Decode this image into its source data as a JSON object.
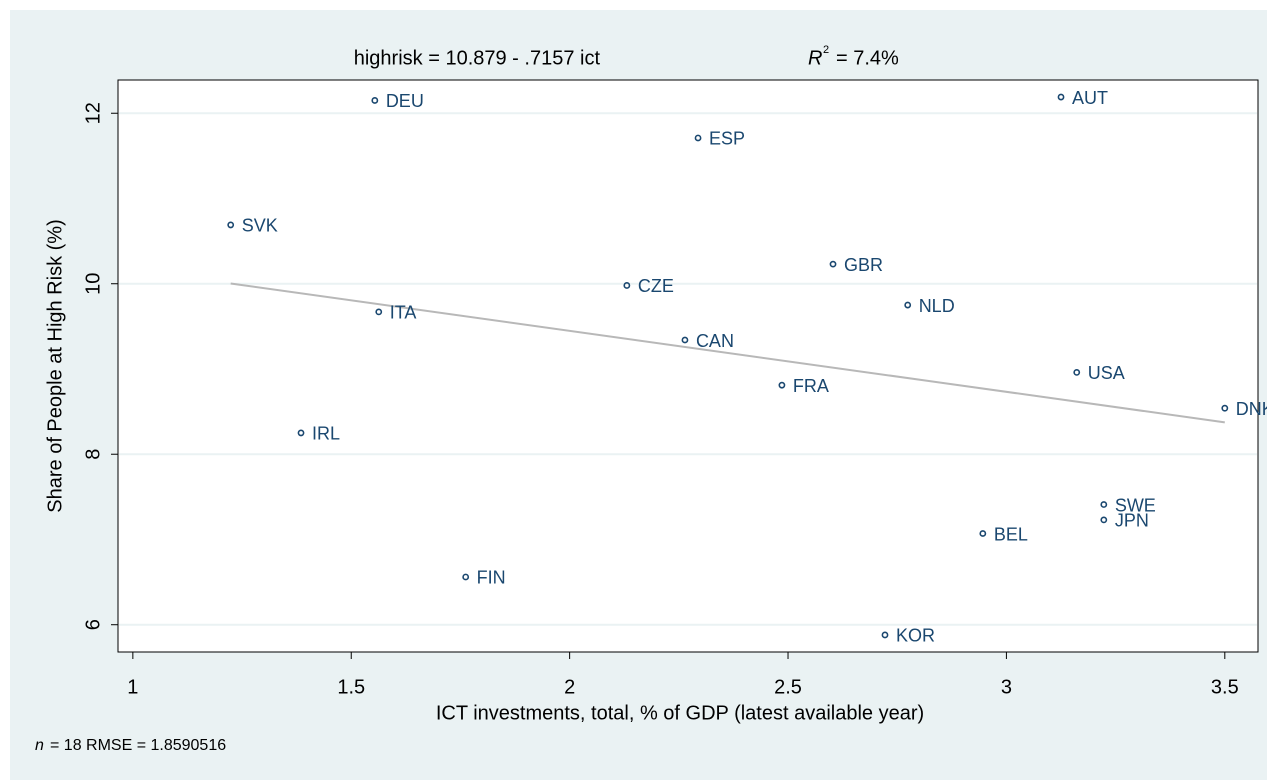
{
  "chart_data": {
    "type": "scatter",
    "title": "highrisk = 10.879 - .7157 ict",
    "r2_symbol": "R",
    "r2_exponent": "2",
    "r2_text": "= 7.4%",
    "x_label": "ICT investments, total, % of GDP (latest available year)",
    "y_label": "Share of People at High Risk (%)",
    "note_n": "n",
    "note": "= 18    RMSE =  1.8590516",
    "point_labels": [
      "DEU",
      "AUT",
      "ESP",
      "SVK",
      "GBR",
      "CZE",
      "NLD",
      "ITA",
      "CAN",
      "USA",
      "FRA",
      "DNK",
      "IRL",
      "SWE",
      "JPN",
      "BEL",
      "FIN",
      "KOR"
    ],
    "x": [
      1.554,
      3.125,
      2.294,
      1.224,
      2.603,
      2.131,
      2.774,
      1.563,
      2.264,
      3.161,
      2.486,
      3.5,
      1.385,
      3.223,
      3.223,
      2.946,
      1.762,
      2.722
    ],
    "values": [
      12.15,
      12.19,
      11.71,
      10.69,
      10.23,
      9.98,
      9.75,
      9.67,
      9.34,
      8.96,
      8.81,
      8.54,
      8.25,
      7.41,
      7.23,
      7.07,
      6.56,
      5.88
    ],
    "color": "#1a476f",
    "fit": {
      "intercept": 10.879,
      "slope": -0.7157,
      "color": "#b8b8b8"
    },
    "xlim": [
      0.966,
      3.576
    ],
    "xticks": [
      1,
      1.5,
      2,
      2.5,
      3,
      3.5
    ],
    "ylim": [
      5.68,
      12.39
    ],
    "yticks": [
      6,
      8,
      10,
      12
    ],
    "grid": true
  }
}
